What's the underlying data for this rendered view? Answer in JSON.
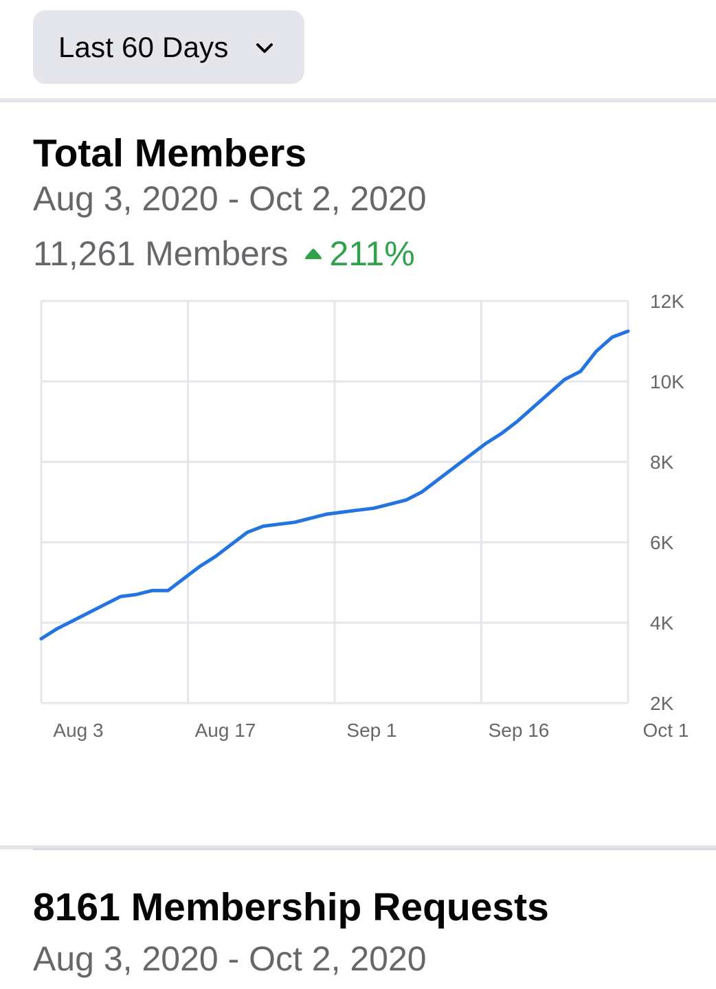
{
  "range_selector": {
    "label": "Last 60 Days",
    "icon": "chevron-down-icon"
  },
  "total_members": {
    "title": "Total Members",
    "date_range": "Aug 3, 2020 - Oct 2, 2020",
    "members_text": "11,261 Members",
    "growth_text": "211%",
    "growth_icon": "triangle-up-icon",
    "growth_color": "#31a24c"
  },
  "chart_data": {
    "type": "line",
    "x_tick_labels": [
      "Aug 3",
      "Aug 17",
      "Sep 1",
      "Sep 16",
      "Oct 1"
    ],
    "y_tick_labels": [
      "12K",
      "10K",
      "8K",
      "6K",
      "4K",
      "2K"
    ],
    "ylim": [
      2000,
      12000
    ],
    "grid": true,
    "line_color": "#2374e1",
    "series": [
      {
        "values": [
          3600,
          3850,
          4050,
          4250,
          4450,
          4650,
          4700,
          4800,
          4800,
          5100,
          5400,
          5650,
          5950,
          6250,
          6400,
          6450,
          6500,
          6600,
          6700,
          6750,
          6800,
          6850,
          6950,
          7050,
          7250,
          7550,
          7850,
          8150,
          8450,
          8700,
          9000,
          9350,
          9700,
          10050,
          10250,
          10750,
          11100,
          11250
        ]
      }
    ]
  },
  "membership_requests": {
    "title": "8161 Membership Requests",
    "date_range": "Aug 3, 2020 - Oct 2, 2020"
  }
}
